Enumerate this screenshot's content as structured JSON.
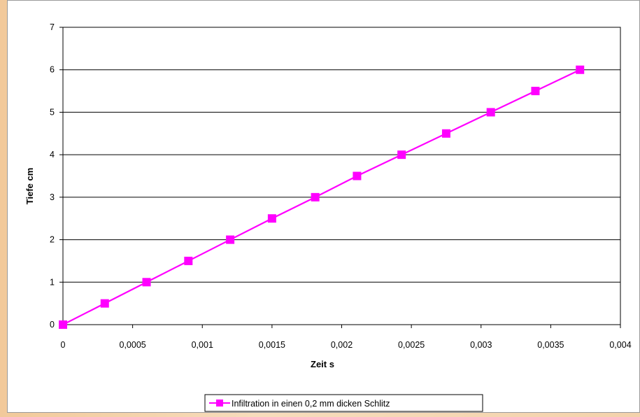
{
  "chart_data": {
    "type": "line",
    "title": "",
    "xlabel": "Zeit s",
    "ylabel": "Tiefe cm",
    "xlim": [
      0,
      0.004
    ],
    "ylim": [
      0,
      7
    ],
    "x_ticks": [
      "0",
      "0,0005",
      "0,001",
      "0,0015",
      "0,002",
      "0,0025",
      "0,003",
      "0,0035",
      "0,004"
    ],
    "y_ticks": [
      "0",
      "1",
      "2",
      "3",
      "4",
      "5",
      "6",
      "7"
    ],
    "grid": "horizontal",
    "legend_position": "bottom-center",
    "series": [
      {
        "name": "Infiltration in einen 0,2 mm dicken Schlitz",
        "color": "#ff00ff",
        "marker": "square",
        "x": [
          0,
          0.0003,
          0.0006,
          0.0009,
          0.0012,
          0.0015,
          0.00181,
          0.00211,
          0.00243,
          0.00275,
          0.00307,
          0.00339,
          0.00371
        ],
        "y": [
          0,
          0.5,
          1.0,
          1.5,
          2.0,
          2.5,
          3.0,
          3.5,
          4.0,
          4.5,
          5.0,
          5.5,
          6.0
        ]
      }
    ]
  }
}
